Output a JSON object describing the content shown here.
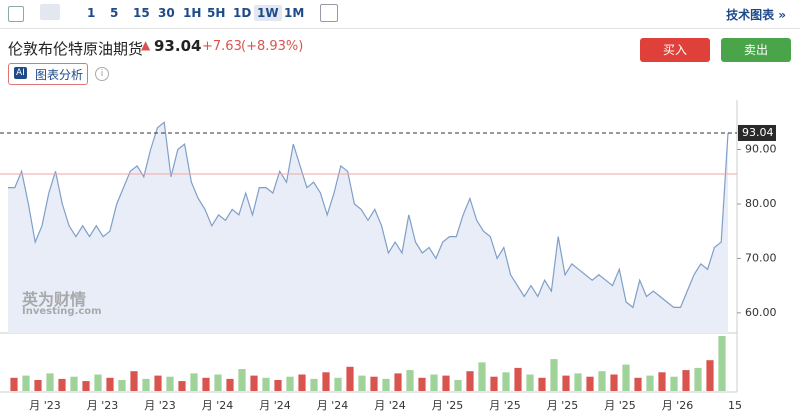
{
  "toolbar": {
    "intervals": [
      "1",
      "5",
      "15",
      "30",
      "1H",
      "5H",
      "1D",
      "1W",
      "1M"
    ],
    "selected": 7,
    "tech_chart": "技术图表 »"
  },
  "header": {
    "name": "伦敦布伦特原油期货",
    "price": "93.04",
    "change": "+7.63",
    "change_pct": "(+8.93%)"
  },
  "buttons": {
    "buy": "买入",
    "sell": "卖出"
  },
  "ai": {
    "badge": "AI",
    "label": "图表分析"
  },
  "watermark": {
    "cn": "英为财情",
    "en": "Investing.com"
  },
  "chart_data": {
    "type": "area",
    "color": "#7f9fc8",
    "fill": "#e9edf8",
    "values": [
      83,
      83,
      86,
      80,
      73,
      76,
      82,
      86,
      80,
      76,
      74,
      76,
      74,
      76,
      74,
      75,
      80,
      83,
      86,
      87,
      85,
      90,
      94,
      95,
      85,
      90,
      91,
      84,
      81,
      79,
      76,
      78,
      77,
      79,
      78,
      82,
      78,
      83,
      83,
      82,
      86,
      84,
      91,
      87,
      83,
      84,
      82,
      78,
      82,
      87,
      86,
      80,
      79,
      77,
      79,
      76,
      71,
      73,
      71,
      78,
      73,
      71,
      72,
      70,
      73,
      74,
      74,
      78,
      81,
      77,
      75,
      74,
      70,
      72,
      67,
      65,
      63,
      65,
      63,
      66,
      64,
      74,
      67,
      69,
      68,
      67,
      66,
      67,
      66,
      65,
      68,
      62,
      61,
      66,
      63,
      64,
      63,
      62,
      61,
      61,
      64,
      67,
      69,
      68,
      72,
      73,
      93.04
    ],
    "ylim": [
      56.3,
      99.1
    ],
    "yticks": [
      {
        "value": 60,
        "label": "60.00"
      },
      {
        "value": 70,
        "label": "70.00"
      },
      {
        "value": 80,
        "label": "80.00"
      },
      {
        "value": 90,
        "label": "90.00"
      }
    ],
    "last_value": {
      "value": 93.04,
      "label": "93.04"
    },
    "reference_line": 85.5,
    "x_labels": [
      "月 '23",
      "月 '23",
      "月 '23",
      "月 '24",
      "月 '24",
      "月 '24",
      "月 '24",
      "月 '25",
      "月 '25",
      "月 '25",
      "月 '25",
      "月 '26",
      "15"
    ],
    "volume": {
      "series": [
        {
          "color": "#d9534f",
          "values": [
            12,
            null,
            10,
            null,
            11,
            null,
            9,
            null,
            12,
            null,
            18,
            null,
            14,
            null,
            9,
            null,
            12,
            null,
            11,
            null,
            14,
            null,
            10,
            null,
            15,
            null,
            17,
            null,
            22,
            null,
            13,
            null,
            16,
            null,
            12,
            null,
            14,
            null,
            18,
            null,
            13,
            null,
            21,
            null,
            12,
            null,
            14,
            null,
            13,
            null,
            15,
            null,
            12,
            null,
            17,
            null,
            19,
            null,
            28,
            null
          ]
        },
        {
          "color": "#9fd39a",
          "values": [
            null,
            14,
            null,
            16,
            null,
            13,
            null,
            15,
            null,
            10,
            null,
            11,
            null,
            13,
            null,
            16,
            null,
            15,
            null,
            20,
            null,
            12,
            null,
            13,
            null,
            11,
            null,
            12,
            null,
            14,
            null,
            11,
            null,
            19,
            null,
            15,
            null,
            10,
            null,
            26,
            null,
            17,
            null,
            15,
            null,
            29,
            null,
            16,
            null,
            18,
            null,
            24,
            null,
            14,
            null,
            13,
            null,
            21,
            null,
            50
          ]
        }
      ]
    }
  }
}
